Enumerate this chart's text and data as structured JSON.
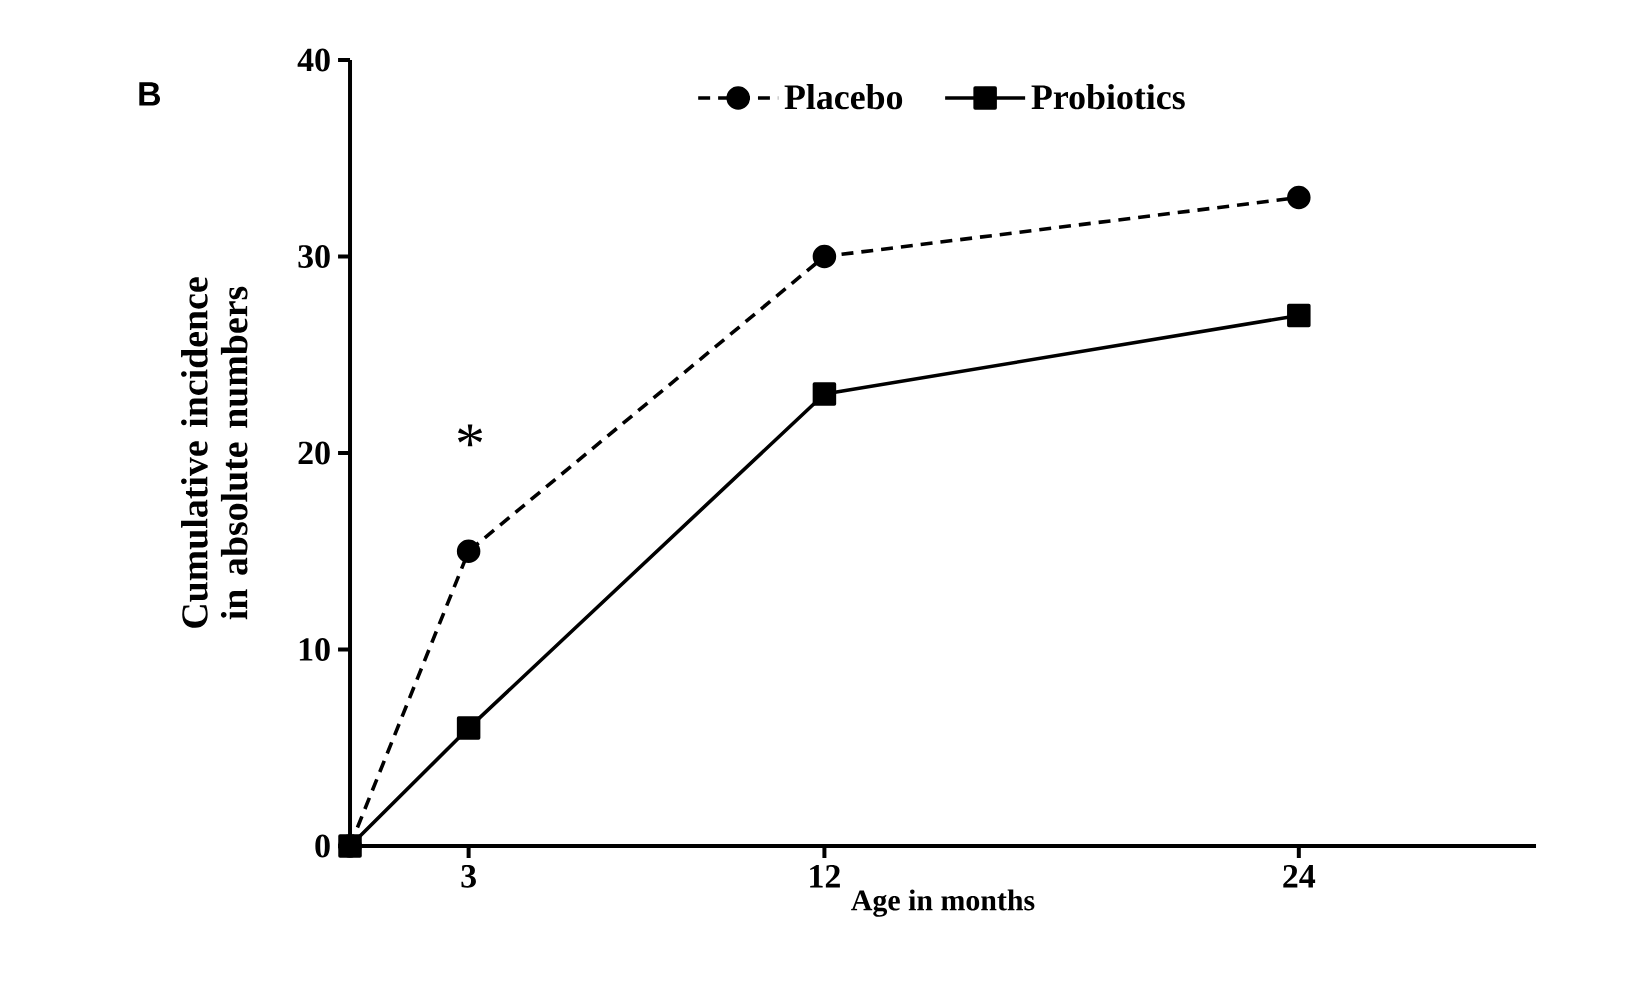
{
  "chart_data": {
    "type": "line",
    "xlabel": "Age in months",
    "ylabel": "Cumulative incidence in absolute numbers",
    "x": [
      0,
      3,
      12,
      24
    ],
    "xlim": [
      0,
      30
    ],
    "xticks": [
      3,
      12,
      24
    ],
    "ylim": [
      0,
      40
    ],
    "yticks": [
      0,
      10,
      20,
      30,
      40
    ],
    "series": [
      {
        "name": "Placebo",
        "color": "#000000",
        "values": [
          0,
          15,
          30,
          33
        ],
        "marker": "circle",
        "line_style": "dashed"
      },
      {
        "name": "Probiotics",
        "color": "#000000",
        "values": [
          0,
          6,
          23,
          27
        ],
        "marker": "square",
        "line_style": "solid"
      }
    ],
    "legend": "top",
    "grid": false,
    "annotations": [
      "B",
      "*"
    ]
  }
}
